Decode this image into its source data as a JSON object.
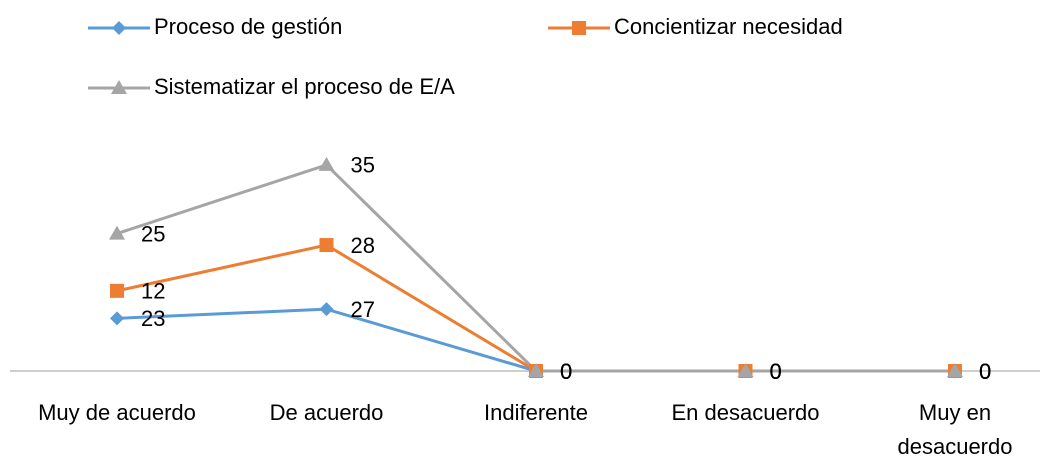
{
  "chart_data": {
    "type": "stacked_line",
    "categories": [
      "Muy de acuerdo",
      "De acuerdo",
      "Indiferente",
      "En desacuerdo",
      "Muy en desacuerdo"
    ],
    "series": [
      {
        "name": "Proceso de gestión",
        "color": "#5b9bd5",
        "marker": "diamond",
        "values": [
          23,
          27,
          0,
          0,
          0
        ]
      },
      {
        "name": "Concientizar necesidad",
        "color": "#ed7d31",
        "marker": "square",
        "values": [
          12,
          28,
          0,
          0,
          0
        ]
      },
      {
        "name": "Sistematizar el proceso de E/A",
        "color": "#a5a5a5",
        "marker": "triangle",
        "values": [
          25,
          35,
          0,
          0,
          0
        ]
      }
    ]
  }
}
